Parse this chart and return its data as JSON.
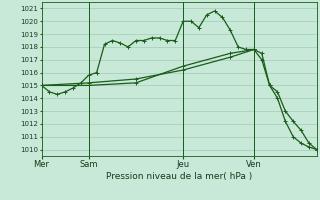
{
  "title": "Pression niveau de la mer( hPa )",
  "bg_color": "#c8e8d8",
  "grid_color": "#a0ccb8",
  "line_color": "#1a5c1a",
  "vline_color": "#2a6a2a",
  "ylim": [
    1009.5,
    1021.5
  ],
  "yticks": [
    1010,
    1011,
    1012,
    1013,
    1014,
    1015,
    1016,
    1017,
    1018,
    1019,
    1020,
    1021
  ],
  "day_labels": [
    "Mer",
    "Sam",
    "Jeu",
    "Ven"
  ],
  "day_positions": [
    0,
    6,
    18,
    27
  ],
  "vline_positions": [
    6,
    18,
    27
  ],
  "xlim": [
    0,
    35
  ],
  "series1_x": [
    0,
    1,
    2,
    3,
    4,
    5,
    6,
    7,
    8,
    9,
    10,
    11,
    12,
    13,
    14,
    15,
    16,
    17,
    18,
    19,
    20,
    21,
    22,
    23,
    24,
    25,
    26,
    27
  ],
  "series1_y": [
    1015.0,
    1014.5,
    1014.3,
    1014.5,
    1014.8,
    1015.2,
    1015.8,
    1016.0,
    1018.2,
    1018.5,
    1018.3,
    1018.0,
    1018.5,
    1018.5,
    1018.7,
    1018.7,
    1018.5,
    1018.5,
    1020.0,
    1020.0,
    1019.5,
    1020.5,
    1020.8,
    1020.3,
    1019.3,
    1018.0,
    1017.8,
    1017.8
  ],
  "series2_x": [
    0,
    6,
    12,
    18,
    24,
    27,
    28,
    29,
    30,
    31,
    32,
    33,
    34,
    35
  ],
  "series2_y": [
    1015.0,
    1015.2,
    1015.5,
    1016.2,
    1017.2,
    1017.8,
    1017.5,
    1015.0,
    1014.0,
    1012.2,
    1011.0,
    1010.5,
    1010.2,
    1010.0
  ],
  "series3_x": [
    0,
    6,
    12,
    18,
    24,
    27,
    28,
    29,
    30,
    31,
    32,
    33,
    34,
    35
  ],
  "series3_y": [
    1015.0,
    1015.0,
    1015.2,
    1016.5,
    1017.5,
    1017.8,
    1017.0,
    1015.0,
    1014.5,
    1013.0,
    1012.2,
    1011.5,
    1010.5,
    1010.0
  ]
}
